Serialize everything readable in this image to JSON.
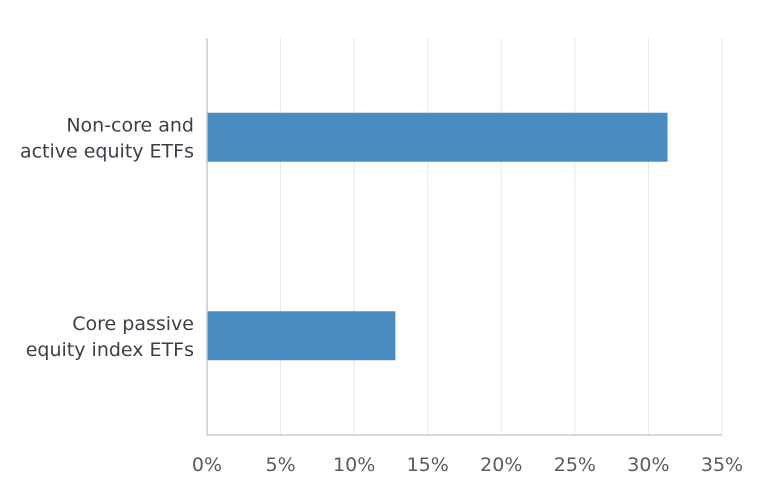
{
  "chart_data": {
    "type": "bar",
    "orientation": "horizontal",
    "title": "",
    "xlabel": "",
    "ylabel": "",
    "categories": [
      [
        "Non-core and",
        "active equity ETFs"
      ],
      [
        "Core passive",
        "equity index ETFs"
      ]
    ],
    "values": [
      31.3,
      12.8
    ],
    "xlim": [
      0,
      35
    ],
    "xticks": [
      0,
      5,
      10,
      15,
      20,
      25,
      30,
      35
    ],
    "xtick_labels": [
      "0%",
      "5%",
      "10%",
      "15%",
      "20%",
      "25%",
      "30%",
      "35%"
    ],
    "bar_color": "#4a8cbf",
    "grid": true,
    "legend": "none"
  }
}
